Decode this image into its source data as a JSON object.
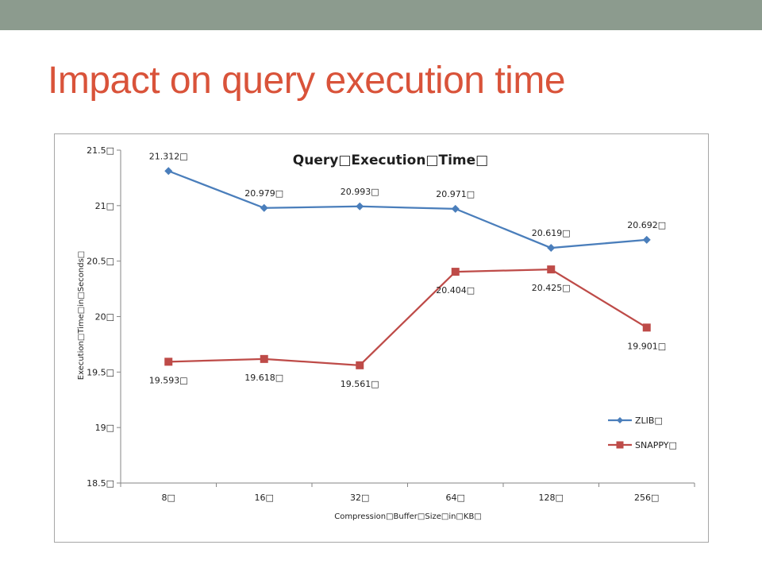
{
  "slide": {
    "title": "Impact on query execution time",
    "title_color": "#d9533a",
    "bar_color": "#8c9b8e"
  },
  "chart_data": {
    "type": "line",
    "title": "Query\u0000Execu\u001ation\u0000Time\u0000",
    "title_display": "Query□Execution□Time□",
    "xlabel": "Compression□Buffer□Size□in□KB□",
    "ylabel": "Execution□Time□in□Seconds□",
    "categories": [
      "8□",
      "16□",
      "32□",
      "64□",
      "128□",
      "256□"
    ],
    "y_ticks": [
      "18.5□",
      "19□",
      "19.5□",
      "20□",
      "20.5□",
      "21□",
      "21.5□"
    ],
    "y_tick_values": [
      18.5,
      19,
      19.5,
      20,
      20.5,
      21,
      21.5
    ],
    "ylim": [
      18.5,
      21.5
    ],
    "grid": false,
    "legend": "right",
    "series": [
      {
        "name": "ZLIB□",
        "color": "#4a7ebb",
        "marker": "diamond",
        "label_position": "above",
        "values": [
          21.312,
          20.979,
          20.993,
          20.971,
          20.619,
          20.692
        ],
        "labels": [
          "21.312□",
          "20.979□",
          "20.993□",
          "20.971□",
          "20.619□",
          "20.692□"
        ]
      },
      {
        "name": "SNAPPY□",
        "color": "#be4b48",
        "marker": "square",
        "label_position": "below",
        "values": [
          19.593,
          19.618,
          19.561,
          20.404,
          20.425,
          19.901
        ],
        "labels": [
          "19.593□",
          "19.618□",
          "19.561□",
          "20.404□",
          "20.425□",
          "19.901□"
        ]
      }
    ]
  }
}
